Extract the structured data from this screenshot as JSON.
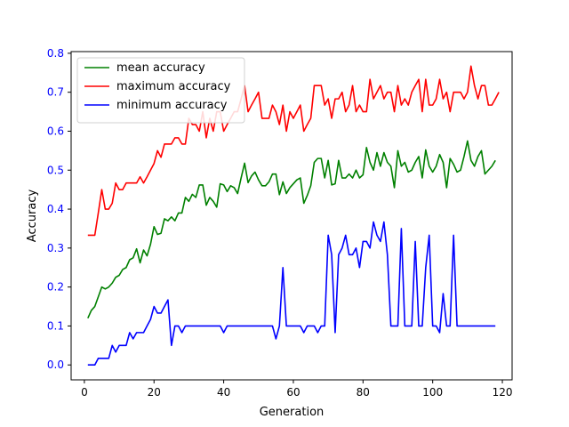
{
  "chart_data": {
    "type": "line",
    "title": "",
    "xlabel": "Generation",
    "ylabel": "Accuracy",
    "xlim": [
      -3.8,
      122.8
    ],
    "ylim": [
      -0.0383,
      0.8043
    ],
    "xticks": [
      0,
      20,
      40,
      60,
      80,
      100,
      120
    ],
    "yticks": [
      0.0,
      0.1,
      0.2,
      0.3,
      0.4,
      0.5,
      0.6,
      0.7,
      0.8
    ],
    "ytick_labels": [
      "0.0",
      "0.1",
      "0.2",
      "0.3",
      "0.4",
      "0.5",
      "0.6",
      "0.7",
      "0.8"
    ],
    "ytick_color": "#0000ff",
    "grid": false,
    "legend_position": "top-left",
    "x_start": 1,
    "series": [
      {
        "name": "mean accuracy",
        "color": "#008000",
        "values": [
          0.12,
          0.14,
          0.15,
          0.175,
          0.2,
          0.195,
          0.2,
          0.21,
          0.225,
          0.23,
          0.245,
          0.25,
          0.27,
          0.275,
          0.298,
          0.262,
          0.295,
          0.28,
          0.31,
          0.355,
          0.335,
          0.338,
          0.375,
          0.37,
          0.38,
          0.37,
          0.39,
          0.39,
          0.43,
          0.42,
          0.438,
          0.43,
          0.462,
          0.462,
          0.41,
          0.43,
          0.42,
          0.405,
          0.465,
          0.462,
          0.445,
          0.46,
          0.455,
          0.44,
          0.48,
          0.518,
          0.468,
          0.485,
          0.495,
          0.475,
          0.46,
          0.46,
          0.47,
          0.49,
          0.49,
          0.437,
          0.47,
          0.44,
          0.455,
          0.465,
          0.475,
          0.48,
          0.415,
          0.435,
          0.46,
          0.52,
          0.53,
          0.53,
          0.48,
          0.525,
          0.462,
          0.465,
          0.525,
          0.48,
          0.48,
          0.49,
          0.48,
          0.5,
          0.48,
          0.488,
          0.558,
          0.52,
          0.5,
          0.545,
          0.51,
          0.545,
          0.52,
          0.51,
          0.455,
          0.55,
          0.51,
          0.52,
          0.495,
          0.5,
          0.52,
          0.535,
          0.48,
          0.552,
          0.51,
          0.495,
          0.51,
          0.54,
          0.52,
          0.455,
          0.53,
          0.515,
          0.495,
          0.5,
          0.535,
          0.575,
          0.525,
          0.51,
          0.535,
          0.55,
          0.49,
          0.5,
          0.51,
          0.525
        ]
      },
      {
        "name": "maximum accuracy",
        "color": "#ff0000",
        "values": [
          0.333,
          0.333,
          0.333,
          0.39,
          0.45,
          0.4,
          0.4,
          0.415,
          0.467,
          0.45,
          0.45,
          0.467,
          0.467,
          0.467,
          0.467,
          0.483,
          0.467,
          0.483,
          0.5,
          0.517,
          0.55,
          0.533,
          0.567,
          0.567,
          0.567,
          0.583,
          0.583,
          0.567,
          0.567,
          0.633,
          0.617,
          0.617,
          0.6,
          0.65,
          0.583,
          0.633,
          0.6,
          0.65,
          0.65,
          0.6,
          0.617,
          0.633,
          0.65,
          0.65,
          0.683,
          0.717,
          0.65,
          0.667,
          0.683,
          0.7,
          0.633,
          0.633,
          0.633,
          0.667,
          0.65,
          0.617,
          0.667,
          0.6,
          0.65,
          0.633,
          0.65,
          0.667,
          0.6,
          0.617,
          0.633,
          0.717,
          0.717,
          0.717,
          0.667,
          0.683,
          0.633,
          0.683,
          0.683,
          0.7,
          0.65,
          0.667,
          0.717,
          0.65,
          0.667,
          0.65,
          0.65,
          0.733,
          0.683,
          0.7,
          0.717,
          0.683,
          0.7,
          0.7,
          0.65,
          0.717,
          0.667,
          0.683,
          0.667,
          0.7,
          0.717,
          0.733,
          0.65,
          0.733,
          0.667,
          0.667,
          0.683,
          0.733,
          0.683,
          0.7,
          0.65,
          0.7,
          0.7,
          0.7,
          0.683,
          0.7,
          0.767,
          0.717,
          0.683,
          0.717,
          0.717,
          0.667,
          0.667,
          0.683,
          0.7
        ]
      },
      {
        "name": "minimum accuracy",
        "color": "#0000ff",
        "values": [
          0.0,
          0.0,
          0.0,
          0.017,
          0.017,
          0.017,
          0.017,
          0.05,
          0.033,
          0.05,
          0.05,
          0.05,
          0.083,
          0.067,
          0.083,
          0.083,
          0.083,
          0.1,
          0.117,
          0.15,
          0.133,
          0.133,
          0.15,
          0.167,
          0.05,
          0.1,
          0.1,
          0.083,
          0.1,
          0.1,
          0.1,
          0.1,
          0.1,
          0.1,
          0.1,
          0.1,
          0.1,
          0.1,
          0.1,
          0.083,
          0.1,
          0.1,
          0.1,
          0.1,
          0.1,
          0.1,
          0.1,
          0.1,
          0.1,
          0.1,
          0.1,
          0.1,
          0.1,
          0.1,
          0.067,
          0.1,
          0.25,
          0.1,
          0.1,
          0.1,
          0.1,
          0.1,
          0.083,
          0.1,
          0.1,
          0.1,
          0.083,
          0.1,
          0.1,
          0.333,
          0.283,
          0.083,
          0.283,
          0.3,
          0.333,
          0.283,
          0.283,
          0.3,
          0.25,
          0.317,
          0.317,
          0.3,
          0.367,
          0.333,
          0.317,
          0.367,
          0.283,
          0.1,
          0.1,
          0.1,
          0.35,
          0.1,
          0.1,
          0.1,
          0.317,
          0.1,
          0.1,
          0.25,
          0.333,
          0.1,
          0.1,
          0.083,
          0.183,
          0.1,
          0.1,
          0.333,
          0.1,
          0.1,
          0.1,
          0.1,
          0.1,
          0.1,
          0.1,
          0.1,
          0.1,
          0.1,
          0.1,
          0.1
        ]
      }
    ]
  }
}
